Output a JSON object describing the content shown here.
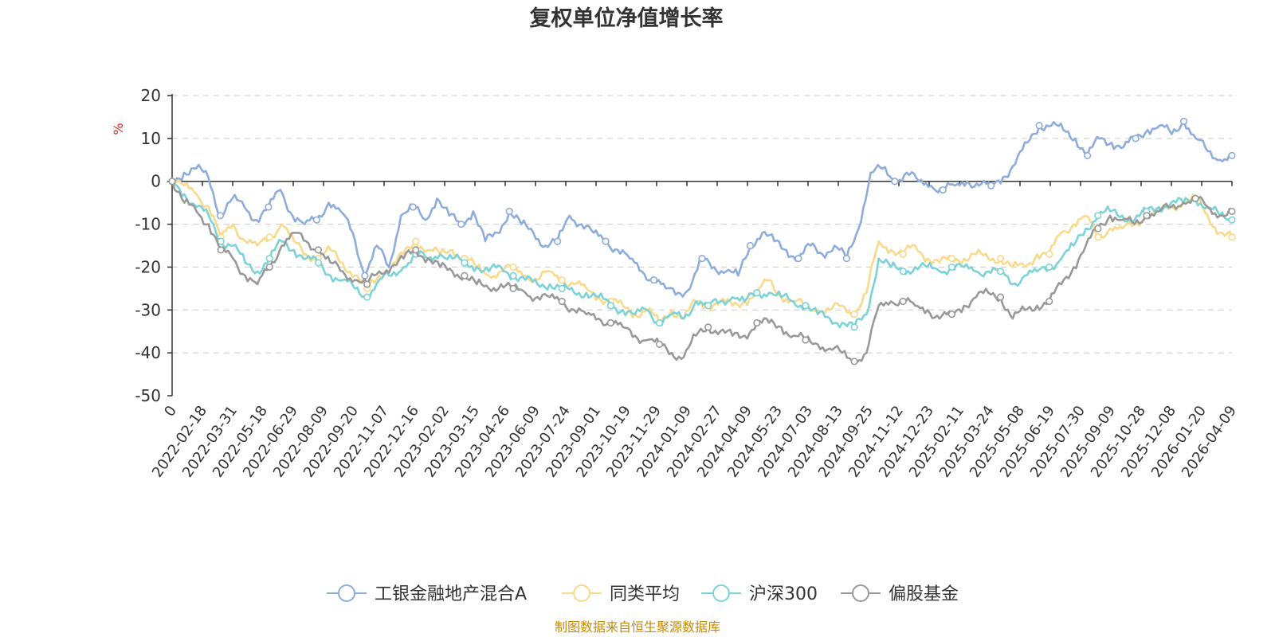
{
  "chart_data": {
    "type": "line",
    "title": "复权单位净值增长率",
    "ylabel": "%",
    "ylim": [
      -50,
      20
    ],
    "yticks": [
      "20",
      "10",
      "0",
      "-10",
      "-20",
      "-30",
      "-40",
      "-50"
    ],
    "x_ticks": [
      "0",
      "2022-02-18",
      "2022-03-31",
      "2022-05-18",
      "2022-06-29",
      "2022-08-09",
      "2022-09-20",
      "2022-11-07",
      "2022-12-16",
      "2023-02-02",
      "2023-03-15",
      "2023-04-26",
      "2023-06-09",
      "2023-07-24",
      "2023-09-01",
      "2023-10-19",
      "2023-11-29",
      "2024-01-09",
      "2024-02-27",
      "2024-04-09",
      "2024-05-23",
      "2024-07-03",
      "2024-08-13",
      "2024-09-25",
      "2024-11-12",
      "2024-12-23",
      "2025-02-11",
      "2025-03-24",
      "2025-05-08",
      "2025-06-19",
      "2025-07-30",
      "2025-09-09",
      "2025-10-28",
      "2025-12-08",
      "2026-01-20",
      "2026-04-09"
    ],
    "grid": true,
    "legend_position": "bottom",
    "source": "制图数据来自恒生聚源数据库",
    "series": [
      {
        "name": "工银金融地产混合A",
        "color": "#8eacdc",
        "values": [
          0,
          2,
          3,
          1,
          -8,
          -4,
          -6,
          -9,
          -6,
          -2,
          -8,
          -10,
          -9,
          -5,
          -7,
          -12,
          -22,
          -15,
          -20,
          -8,
          -6,
          -9,
          -4,
          -8,
          -10,
          -7,
          -14,
          -12,
          -7,
          -10,
          -12,
          -15,
          -14,
          -8,
          -10,
          -12,
          -14,
          -16,
          -18,
          -21,
          -23,
          -25,
          -26,
          -25,
          -18,
          -20,
          -21,
          -22,
          -15,
          -12,
          -14,
          -16,
          -18,
          -15,
          -17,
          -15,
          -18,
          -11,
          2,
          3,
          0,
          2,
          0,
          -1,
          -2,
          -1,
          0,
          -1,
          -1,
          1,
          4,
          9,
          13,
          13,
          12,
          10,
          6,
          10,
          9,
          8,
          10,
          12,
          13,
          11,
          14,
          10,
          7,
          5,
          6
        ]
      },
      {
        "name": "同类平均",
        "color": "#fbd98b",
        "values": [
          0,
          -1,
          -3,
          -6,
          -13,
          -10,
          -14,
          -15,
          -13,
          -10,
          -14,
          -17,
          -18,
          -16,
          -19,
          -22,
          -25,
          -22,
          -20,
          -17,
          -14,
          -16,
          -17,
          -16,
          -18,
          -20,
          -22,
          -21,
          -20,
          -22,
          -23,
          -21,
          -23,
          -24,
          -25,
          -27,
          -28,
          -29,
          -31,
          -30,
          -33,
          -30,
          -32,
          -28,
          -29,
          -28,
          -29,
          -28,
          -26,
          -23,
          -27,
          -28,
          -29,
          -30,
          -30,
          -29,
          -31,
          -26,
          -14,
          -16,
          -17,
          -15,
          -18,
          -19,
          -18,
          -18,
          -17,
          -18,
          -18,
          -20,
          -20,
          -17,
          -17,
          -12,
          -10,
          -8,
          -13,
          -11,
          -11,
          -10,
          -8,
          -7,
          -6,
          -5,
          -4,
          -8,
          -12,
          -13
        ]
      },
      {
        "name": "沪深300",
        "color": "#7bd3d7",
        "values": [
          0,
          -3,
          -6,
          -8,
          -14,
          -15,
          -19,
          -21,
          -18,
          -14,
          -16,
          -18,
          -19,
          -22,
          -23,
          -25,
          -27,
          -23,
          -22,
          -20,
          -17,
          -18,
          -17,
          -18,
          -19,
          -20,
          -21,
          -20,
          -22,
          -23,
          -24,
          -24,
          -25,
          -26,
          -26,
          -27,
          -29,
          -30,
          -31,
          -30,
          -33,
          -31,
          -32,
          -28,
          -29,
          -28,
          -27,
          -28,
          -26,
          -26,
          -27,
          -28,
          -29,
          -31,
          -32,
          -33,
          -34,
          -31,
          -18,
          -20,
          -21,
          -20,
          -20,
          -21,
          -20,
          -20,
          -21,
          -21,
          -21,
          -24,
          -22,
          -21,
          -20,
          -18,
          -15,
          -11,
          -8,
          -7,
          -8,
          -9,
          -7,
          -6,
          -5,
          -5,
          -4,
          -6,
          -8,
          -9
        ]
      },
      {
        "name": "偏股基金",
        "color": "#999999",
        "values": [
          0,
          -5,
          -7,
          -10,
          -16,
          -18,
          -22,
          -24,
          -20,
          -15,
          -12,
          -14,
          -16,
          -19,
          -21,
          -23,
          -24,
          -21,
          -20,
          -18,
          -16,
          -18,
          -20,
          -21,
          -22,
          -24,
          -25,
          -24,
          -25,
          -26,
          -27,
          -27,
          -28,
          -30,
          -31,
          -32,
          -33,
          -34,
          -36,
          -37,
          -38,
          -40,
          -41,
          -36,
          -34,
          -35,
          -36,
          -36,
          -33,
          -33,
          -34,
          -36,
          -37,
          -38,
          -39,
          -40,
          -42,
          -40,
          -29,
          -28,
          -28,
          -29,
          -30,
          -32,
          -31,
          -29,
          -27,
          -26,
          -27,
          -32,
          -30,
          -29,
          -28,
          -24,
          -20,
          -15,
          -11,
          -8,
          -9,
          -10,
          -8,
          -7,
          -6,
          -5,
          -4,
          -6,
          -8,
          -7
        ]
      }
    ]
  },
  "legend": {
    "items": [
      {
        "label": "工银金融地产混合A",
        "color": "#8eacdc"
      },
      {
        "label": "同类平均",
        "color": "#fbd98b"
      },
      {
        "label": "沪深300",
        "color": "#7bd3d7"
      },
      {
        "label": "偏股基金",
        "color": "#999999"
      }
    ]
  },
  "colors": {
    "axis": "#333333",
    "grid": "#cccccc",
    "source": "#c88a00",
    "unit": "#e02020"
  }
}
